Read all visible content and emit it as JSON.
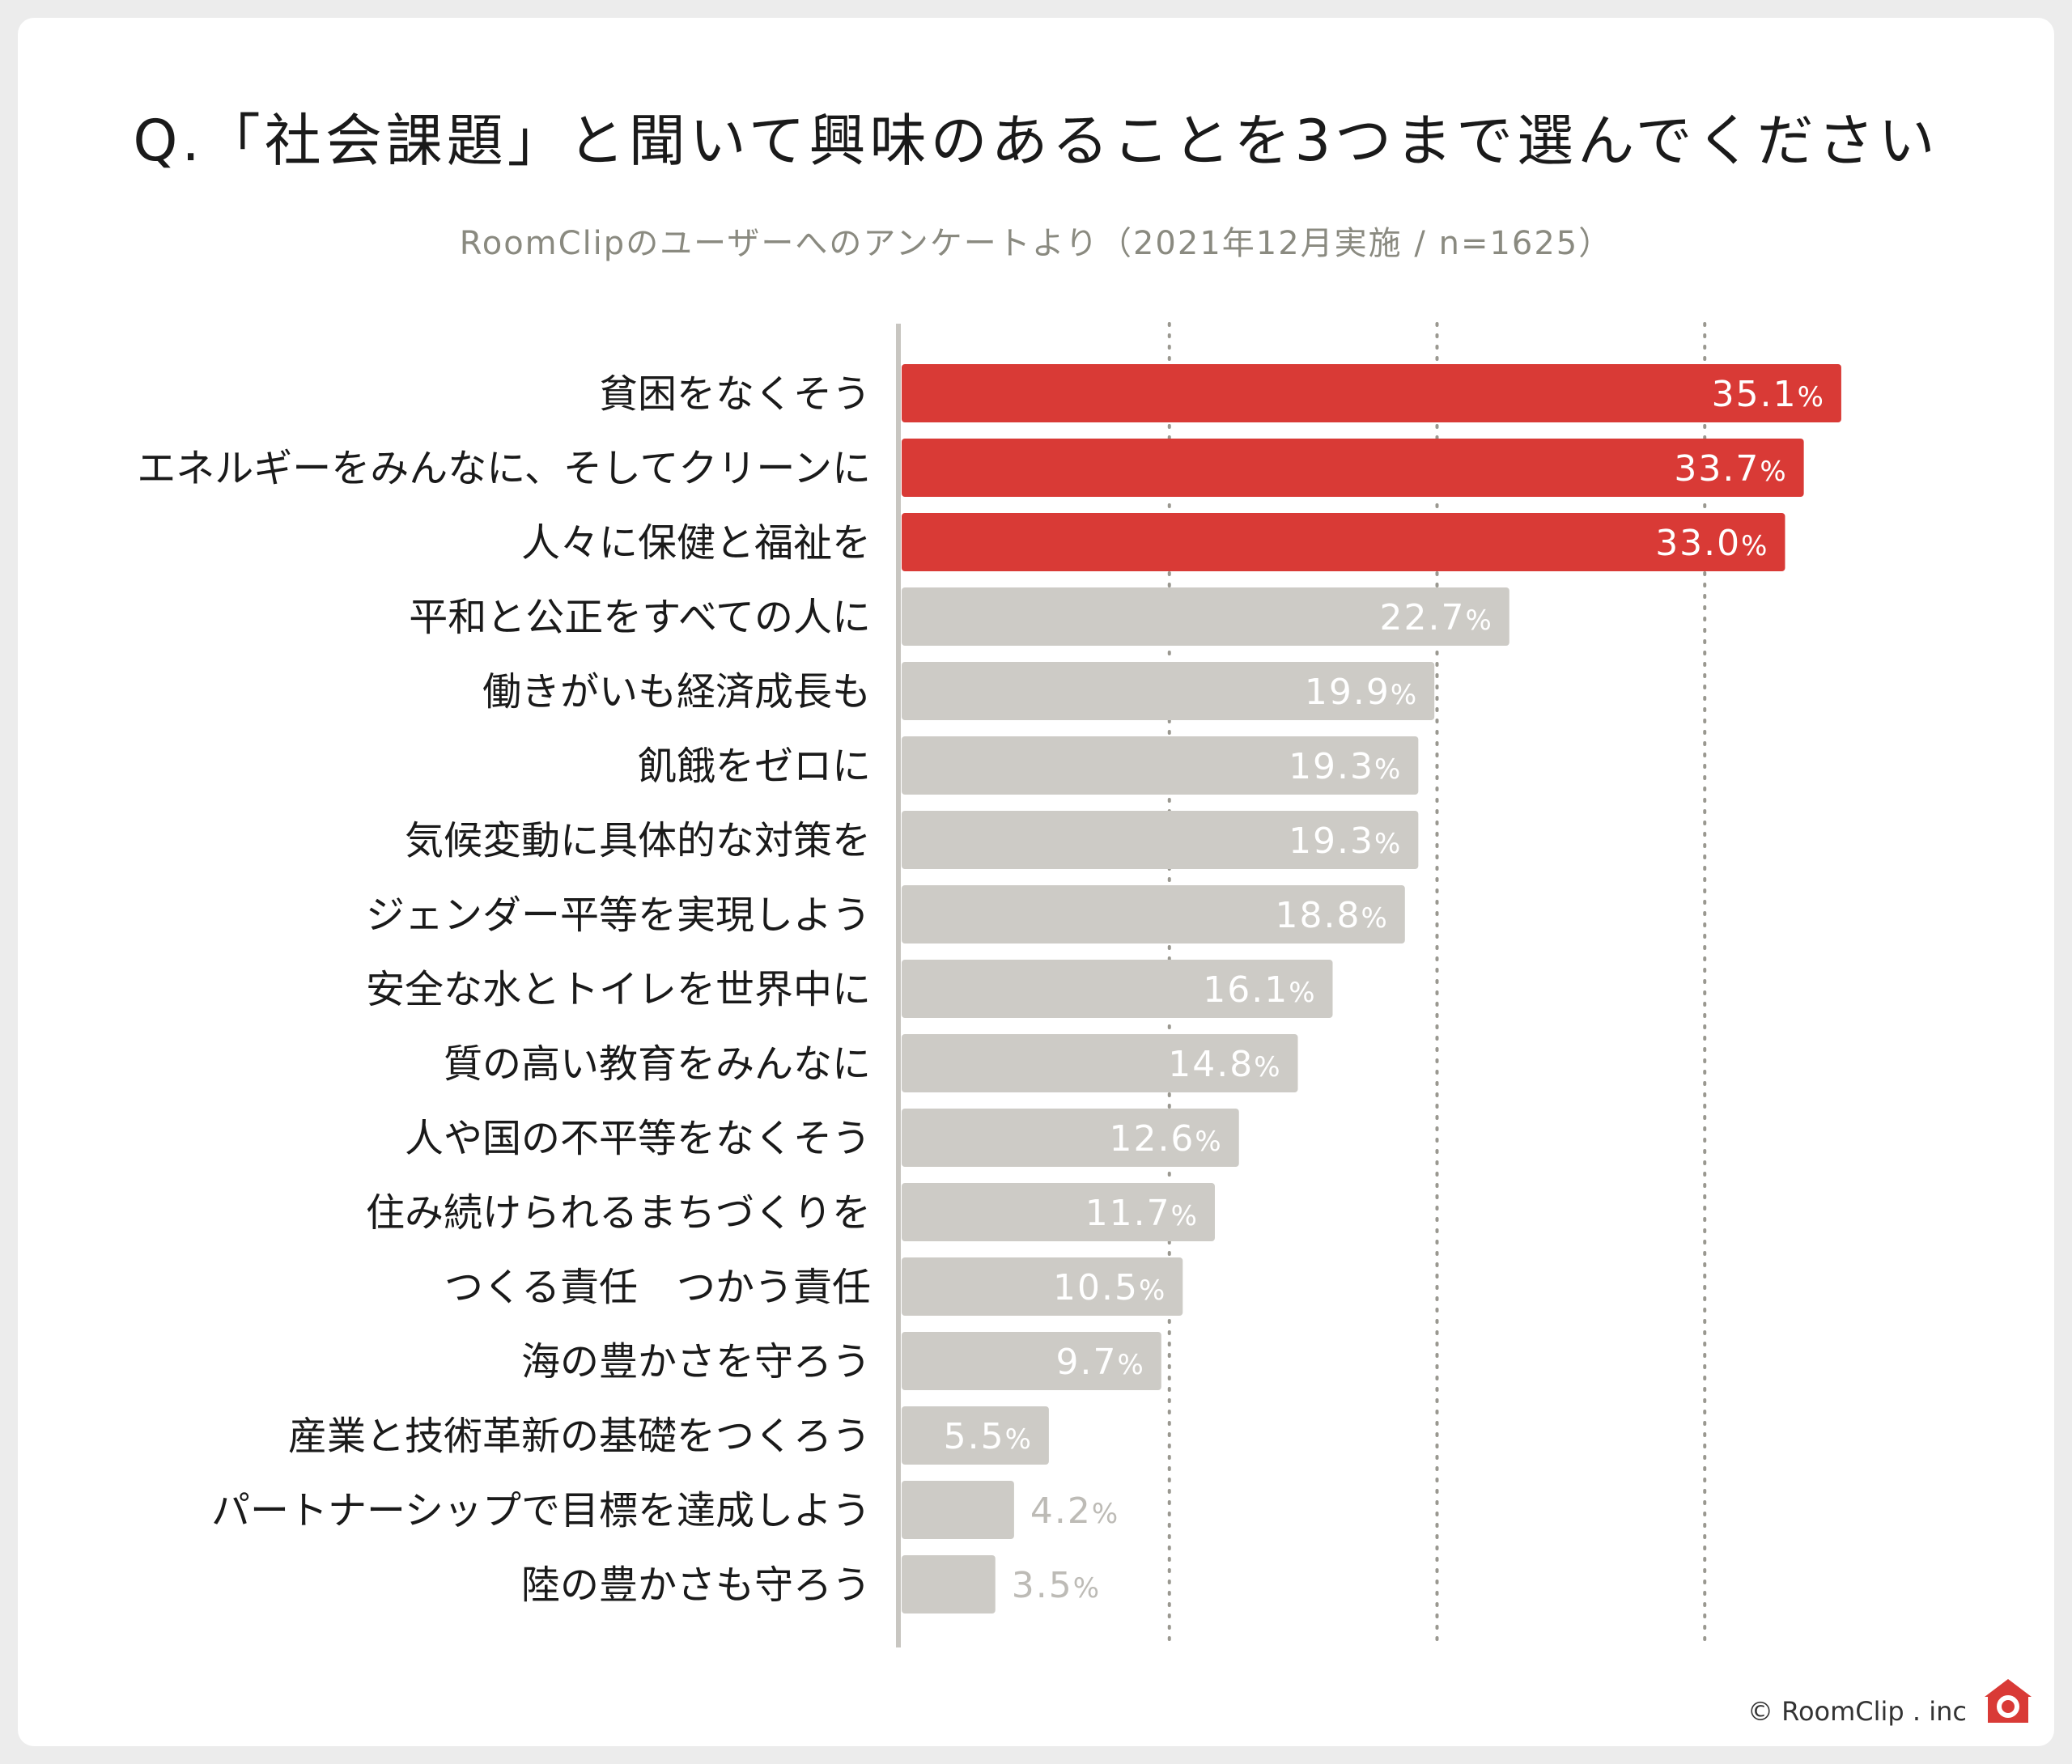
{
  "header": {
    "title": "Q.「社会課題」と聞いて興味のあることを3つまで選んでください",
    "subtitle": "RoomClipのユーザーへのアンケートより（2021年12月実施 / n=1625）"
  },
  "footer": {
    "credit": "© RoomClip . inc"
  },
  "colors": {
    "highlight": "#d93a36",
    "normal": "#cdcbc6",
    "background": "#ffffff",
    "axis": "#c8c6c1"
  },
  "chart_data": {
    "type": "bar",
    "orientation": "horizontal",
    "title": "Q.「社会課題」と聞いて興味のあることを3つまで選んでください",
    "subtitle": "RoomClipのユーザーへのアンケートより（2021年12月実施 / n=1625）",
    "xlabel": "",
    "ylabel": "",
    "xlim": [
      0,
      40
    ],
    "grid": {
      "vertical": true,
      "style": "dotted",
      "values": [
        10,
        20,
        30
      ]
    },
    "unit": "%",
    "highlight_count": 3,
    "categories": [
      "貧困をなくそう",
      "エネルギーをみんなに、そしてクリーンに",
      "人々に保健と福祉を",
      "平和と公正をすべての人に",
      "働きがいも経済成長も",
      "飢餓をゼロに",
      "気候変動に具体的な対策を",
      "ジェンダー平等を実現しよう",
      "安全な水とトイレを世界中に",
      "質の高い教育をみんなに",
      "人や国の不平等をなくそう",
      "住み続けられるまちづくりを",
      "つくる責任　つかう責任",
      "海の豊かさを守ろう",
      "産業と技術革新の基礎をつくろう",
      "パートナーシップで目標を達成しよう",
      "陸の豊かさも守ろう"
    ],
    "values": [
      35.1,
      33.7,
      33.0,
      22.7,
      19.9,
      19.3,
      19.3,
      18.8,
      16.1,
      14.8,
      12.6,
      11.7,
      10.5,
      9.7,
      5.5,
      4.2,
      3.5
    ],
    "value_labels": [
      "35.1",
      "33.7",
      "33.0",
      "22.7",
      "19.9",
      "19.3",
      "19.3",
      "18.8",
      "16.1",
      "14.8",
      "12.6",
      "11.7",
      "10.5",
      "9.7",
      "5.5",
      "4.2",
      "3.5"
    ]
  }
}
